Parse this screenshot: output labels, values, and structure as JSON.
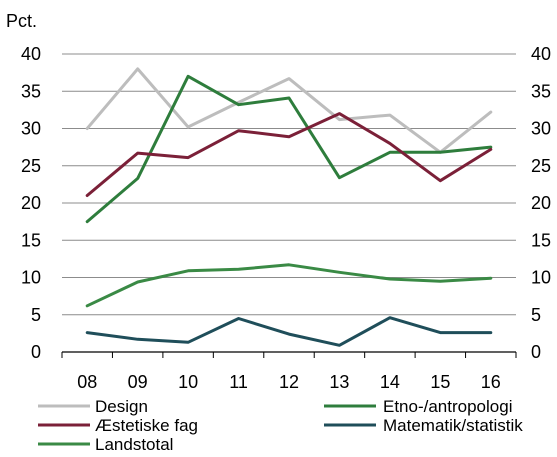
{
  "chart_data": {
    "type": "line",
    "unit_label": "Pct.",
    "categories": [
      "08",
      "09",
      "10",
      "11",
      "12",
      "13",
      "14",
      "15",
      "16"
    ],
    "ylim": [
      0,
      40
    ],
    "yticks": [
      "0",
      "5",
      "10",
      "15",
      "20",
      "25",
      "30",
      "35",
      "40"
    ],
    "grid": true,
    "legend_position": "bottom",
    "series": [
      {
        "name": "Design",
        "color": "#bdbdbd",
        "values": [
          30.0,
          38.0,
          30.2,
          33.5,
          36.7,
          31.2,
          31.8,
          26.8,
          32.2
        ]
      },
      {
        "name": "Etno-/antropologi",
        "color": "#2e7d3c",
        "values": [
          17.5,
          23.3,
          37.0,
          33.2,
          34.1,
          23.4,
          26.8,
          26.8,
          27.5
        ]
      },
      {
        "name": "Æstetiske fag",
        "color": "#7b2038",
        "values": [
          21.0,
          26.7,
          26.1,
          29.7,
          28.9,
          32.0,
          28.0,
          23.0,
          27.2
        ]
      },
      {
        "name": "Matematik/statistik",
        "color": "#1f4e5a",
        "values": [
          2.6,
          1.7,
          1.3,
          4.5,
          2.4,
          0.9,
          4.6,
          2.6,
          2.6
        ]
      },
      {
        "name": "Landstotal",
        "color": "#3a8a45",
        "values": [
          6.2,
          9.4,
          10.9,
          11.1,
          11.7,
          10.7,
          9.8,
          9.5,
          9.9
        ]
      }
    ]
  }
}
